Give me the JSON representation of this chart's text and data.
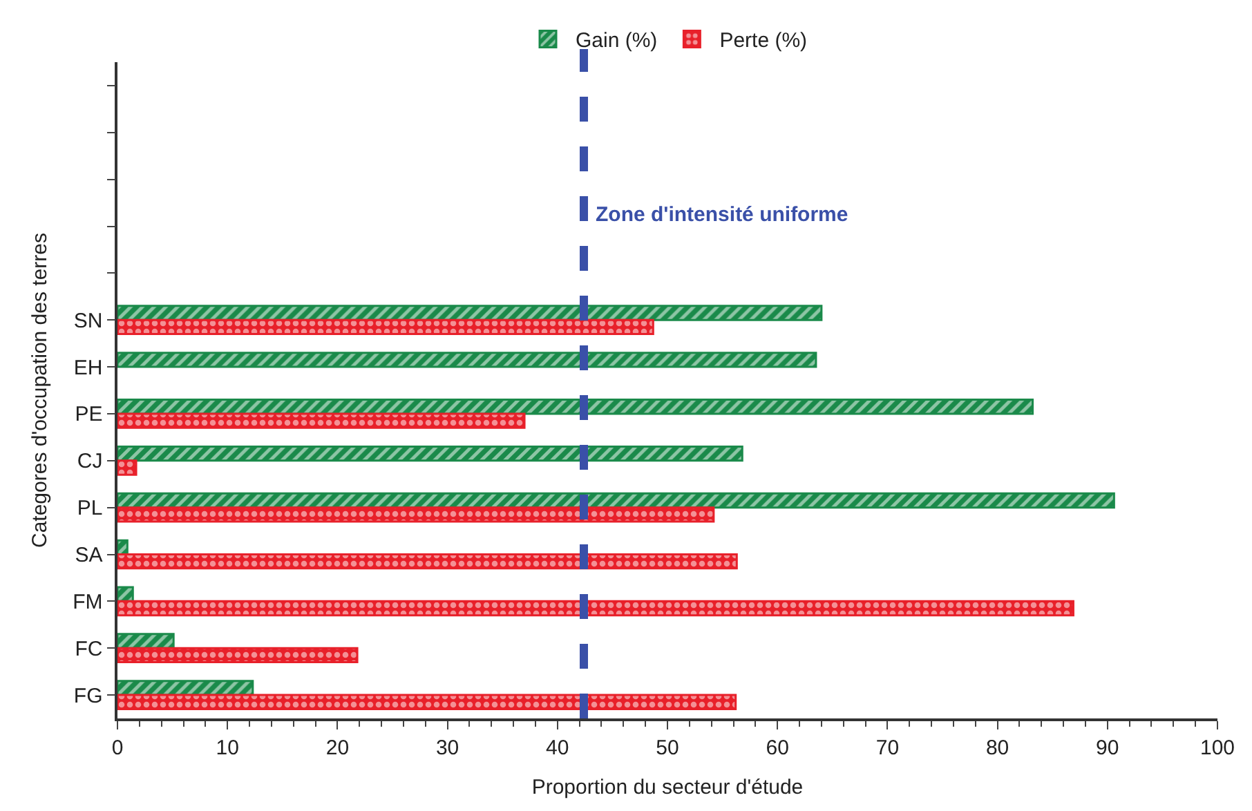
{
  "chart_data": {
    "type": "bar",
    "orientation": "horizontal",
    "xlabel": "Proportion du secteur d'étude",
    "ylabel": "Categores d'occupation des terres",
    "categories": [
      null,
      null,
      null,
      null,
      null,
      "SN",
      "EH",
      "PE",
      "CJ",
      "PL",
      "SA",
      "FM",
      "FC",
      "FG"
    ],
    "series": [
      {
        "name": "Gain (%)",
        "color": "#1a8a4a",
        "values": [
          null,
          null,
          null,
          null,
          null,
          64.0,
          63.5,
          83.2,
          56.8,
          90.6,
          0.9,
          1.4,
          5.1,
          12.3
        ]
      },
      {
        "name": "Perte (%)",
        "color": "#e8202a",
        "values": [
          null,
          null,
          null,
          null,
          null,
          48.7,
          null,
          37.0,
          1.7,
          54.2,
          56.3,
          86.9,
          21.8,
          56.2
        ]
      }
    ],
    "xlim": [
      0,
      100
    ],
    "xticks": [
      0,
      10,
      20,
      30,
      40,
      50,
      60,
      70,
      80,
      90,
      100
    ],
    "ref_lines": [
      {
        "axis": "x",
        "value": 42.4,
        "label": "Zone d'intensité uniforme",
        "color": "#3a50a8",
        "line_style": "dashed"
      }
    ],
    "legend": "top"
  }
}
